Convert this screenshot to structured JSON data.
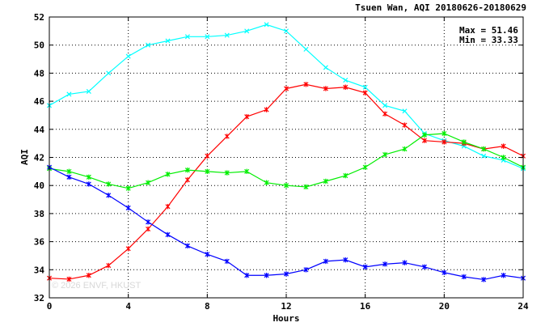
{
  "chart_data": {
    "type": "line",
    "title": "Tsuen Wan, AQI 20180626-20180629",
    "xlabel": "Hours",
    "ylabel": "AQI",
    "xlim": [
      0,
      24
    ],
    "ylim": [
      32,
      52
    ],
    "x_ticks": [
      0,
      4,
      8,
      12,
      16,
      20,
      24
    ],
    "y_ticks": [
      32,
      34,
      36,
      38,
      40,
      42,
      44,
      46,
      48,
      50,
      52
    ],
    "grid": true,
    "stats": {
      "max": "Max = 51.46",
      "min": "Min = 33.33"
    },
    "watermark": "© 2026 ENVF, HKUST",
    "x": [
      0,
      1,
      2,
      3,
      4,
      5,
      6,
      7,
      8,
      9,
      10,
      11,
      12,
      13,
      14,
      15,
      16,
      17,
      18,
      19,
      20,
      21,
      22,
      23,
      24
    ],
    "series": [
      {
        "color": "#00ffff",
        "marker": "x",
        "values": [
          45.7,
          46.5,
          46.7,
          48.0,
          49.2,
          50.0,
          50.3,
          50.6,
          50.6,
          50.7,
          51.0,
          51.46,
          51.0,
          49.7,
          48.4,
          47.5,
          47.0,
          45.7,
          45.3,
          43.7,
          43.2,
          42.8,
          42.1,
          41.8,
          41.2
        ]
      },
      {
        "color": "#ff0000",
        "marker": "*",
        "values": [
          33.4,
          33.33,
          33.6,
          34.3,
          35.5,
          36.9,
          38.5,
          40.4,
          42.1,
          43.5,
          44.9,
          45.4,
          46.9,
          47.2,
          46.9,
          47.0,
          46.6,
          45.1,
          44.3,
          43.2,
          43.1,
          43.0,
          42.6,
          42.8,
          42.1
        ]
      },
      {
        "color": "#00ee00",
        "marker": "*",
        "values": [
          41.2,
          41.0,
          40.6,
          40.1,
          39.8,
          40.2,
          40.8,
          41.1,
          41.0,
          40.9,
          41.0,
          40.2,
          40.0,
          39.9,
          40.3,
          40.7,
          41.3,
          42.2,
          42.6,
          43.6,
          43.7,
          43.1,
          42.6,
          42.0,
          41.3
        ]
      },
      {
        "color": "#0000ff",
        "marker": "*",
        "values": [
          41.3,
          40.6,
          40.1,
          39.3,
          38.4,
          37.4,
          36.5,
          35.7,
          35.1,
          34.6,
          33.6,
          33.6,
          33.7,
          34.0,
          34.6,
          34.7,
          34.2,
          34.4,
          34.5,
          34.2,
          33.8,
          33.5,
          33.3,
          33.6,
          33.4
        ]
      }
    ]
  }
}
